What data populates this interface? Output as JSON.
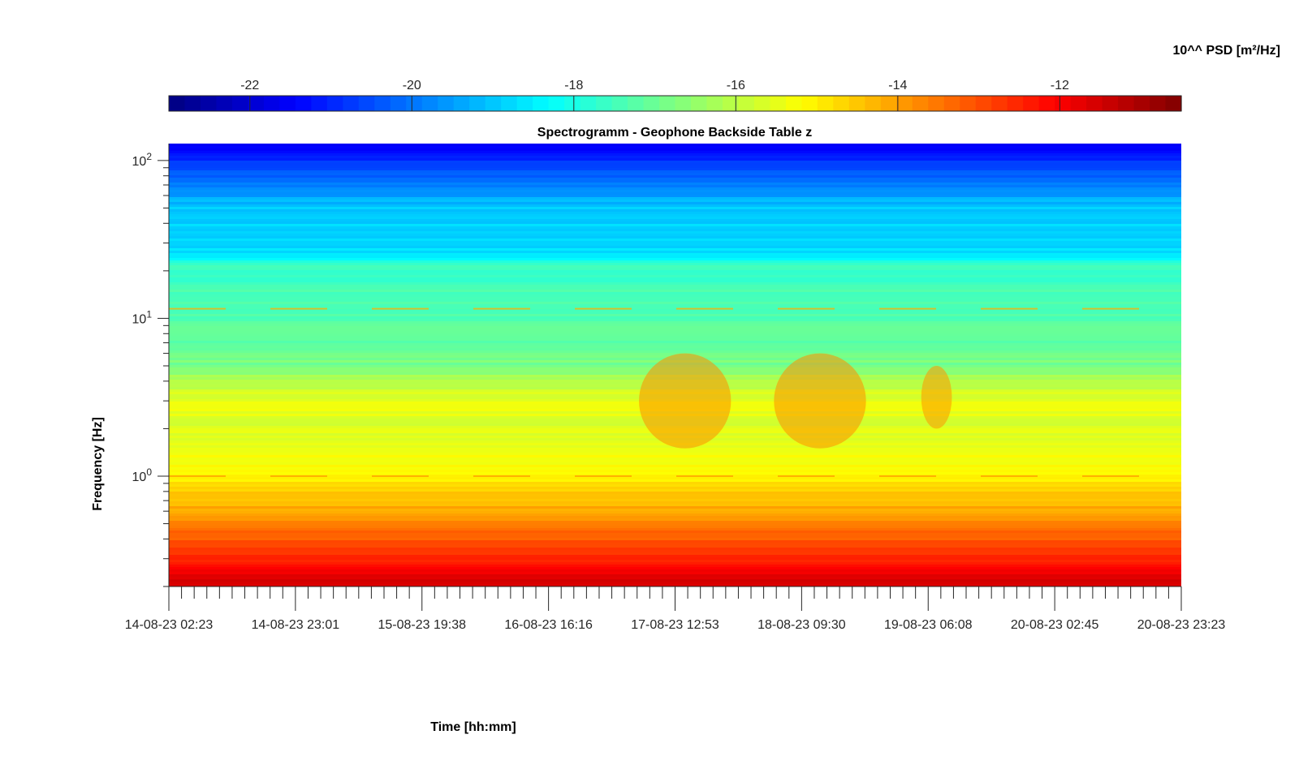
{
  "chart_data": {
    "type": "heatmap",
    "title": "Spectrogramm - Geophone Backside Table z",
    "xlabel": "Time [hh:mm]",
    "ylabel": "Frequency [Hz]",
    "y_scale": "log",
    "y_range_hz": [
      0.2,
      128
    ],
    "x_range": [
      "14-08-23 02:23",
      "20-08-23 23:23"
    ],
    "x_ticks": [
      "14-08-23 02:23",
      "14-08-23 23:01",
      "15-08-23 19:38",
      "16-08-23 16:16",
      "17-08-23 12:53",
      "18-08-23 09:30",
      "19-08-23 06:08",
      "20-08-23 02:45",
      "20-08-23 23:23"
    ],
    "y_ticks": [
      {
        "value": 1,
        "base": "10",
        "exp": "0"
      },
      {
        "value": 10,
        "base": "10",
        "exp": "1"
      },
      {
        "value": 100,
        "base": "10",
        "exp": "2"
      }
    ],
    "colorbar": {
      "label": "10^^ PSD [m²/Hz]",
      "range": [
        -23,
        -10.5
      ],
      "ticks": [
        "-22",
        "-20",
        "-18",
        "-16",
        "-14",
        "-12"
      ],
      "tick_values": [
        -22,
        -20,
        -18,
        -16,
        -14,
        -12
      ],
      "colormap": "jet"
    },
    "psd_profile_by_frequency": [
      {
        "freq_hz": 0.2,
        "log_psd": -11.4
      },
      {
        "freq_hz": 0.3,
        "log_psd": -12.6
      },
      {
        "freq_hz": 0.5,
        "log_psd": -13.6
      },
      {
        "freq_hz": 0.7,
        "log_psd": -14.4
      },
      {
        "freq_hz": 1.0,
        "log_psd": -15.0
      },
      {
        "freq_hz": 2.0,
        "log_psd": -15.6
      },
      {
        "freq_hz": 3.0,
        "log_psd": -15.4
      },
      {
        "freq_hz": 5.0,
        "log_psd": -16.8
      },
      {
        "freq_hz": 8.0,
        "log_psd": -17.2
      },
      {
        "freq_hz": 12.0,
        "log_psd": -17.4
      },
      {
        "freq_hz": 22.0,
        "log_psd": -17.6
      },
      {
        "freq_hz": 25.0,
        "log_psd": -18.7
      },
      {
        "freq_hz": 50.0,
        "log_psd": -19.0
      },
      {
        "freq_hz": 80.0,
        "log_psd": -20.2
      },
      {
        "freq_hz": 128.0,
        "log_psd": -21.6
      }
    ],
    "activity_periods": [
      {
        "start": "17-08-23 07:00",
        "end": "17-08-23 22:00",
        "freq_hz": [
          1.5,
          6
        ],
        "log_psd": -13.8
      },
      {
        "start": "18-08-23 05:00",
        "end": "18-08-23 20:00",
        "freq_hz": [
          1.5,
          6
        ],
        "log_psd": -13.8
      },
      {
        "start": "19-08-23 05:00",
        "end": "19-08-23 10:00",
        "freq_hz": [
          2,
          5
        ],
        "log_psd": -13.9
      }
    ],
    "line_components": [
      {
        "freq_hz": 11.5,
        "log_psd": -14.2
      },
      {
        "freq_hz": 1.0,
        "log_psd": -14.0
      }
    ]
  }
}
